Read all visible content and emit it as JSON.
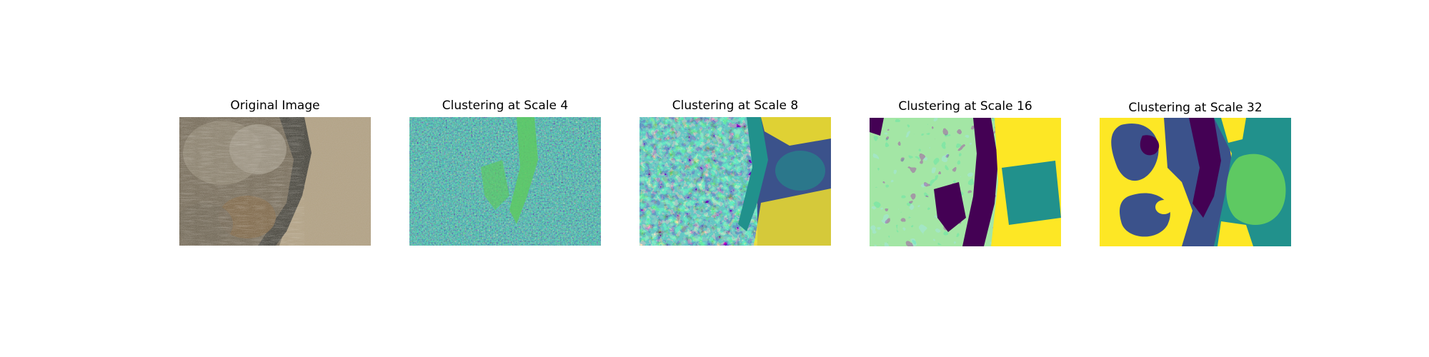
{
  "figure": {
    "panels": [
      {
        "title": "Original Image",
        "kind": "photo"
      },
      {
        "title": "Clustering at Scale 4",
        "kind": "cluster",
        "scale": 4
      },
      {
        "title": "Clustering at Scale 8",
        "kind": "cluster",
        "scale": 8
      },
      {
        "title": "Clustering at Scale 16",
        "kind": "cluster",
        "scale": 16
      },
      {
        "title": "Clustering at Scale 32",
        "kind": "cluster",
        "scale": 32
      }
    ],
    "colors": {
      "viridis": [
        "#440154",
        "#3b528b",
        "#21918c",
        "#5ec962",
        "#fde725"
      ],
      "photo": {
        "shadow": "#2e2e2a",
        "soil": "#b3a283",
        "brush": "#7a6a55",
        "light": "#c8b899"
      }
    }
  }
}
